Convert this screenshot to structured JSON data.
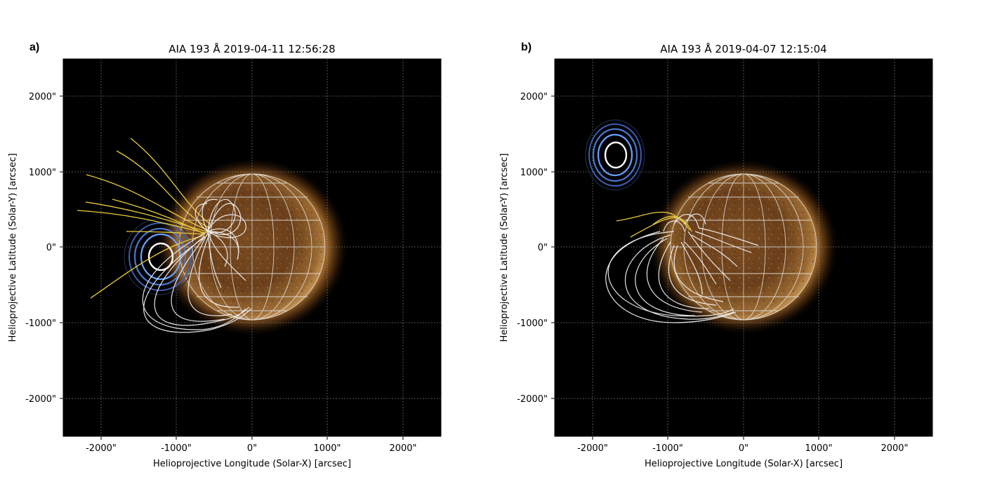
{
  "figure": {
    "colors": {
      "background_sky": "#000000",
      "sun_bright": "#f2c98a",
      "sun_mid": "#a0622a",
      "sun_dark": "#4a2a10",
      "corona": "#c48a3a",
      "grid_on_sun": "#e8e8e8",
      "open_field_lines": "#e8cc3a",
      "closed_field_lines": "#f2f2f2",
      "contour_outer": "#3b5fb0",
      "contour_inner": "#6aa0ff",
      "contour_core": "#ffffff"
    },
    "icons": [
      "solar-disk",
      "magnetic-field-lines",
      "probability-contours"
    ],
    "panels": [
      {
        "letter": "a)",
        "title": "AIA 193 Å 2019-04-11 12:56:28",
        "xlabel": "Helioprojective Longitude (Solar-X) [arcsec]",
        "ylabel": "Helioprojective Latitude (Solar-Y) [arcsec]",
        "xticks": [
          "-2000\"",
          "-1000\"",
          "0\"",
          "1000\"",
          "2000\""
        ],
        "yticks": [
          "2000\"",
          "1000\"",
          "0\"",
          "-1000\"",
          "-2000\""
        ],
        "axis_range_arcsec": {
          "x": [
            -2500,
            2500
          ],
          "y": [
            -2500,
            2500
          ]
        },
        "grid": true,
        "contour_center_arcsec": [
          -1230,
          -130
        ]
      },
      {
        "letter": "b)",
        "title": "AIA 193 Å 2019-04-07 12:15:04",
        "xlabel": "Helioprojective Longitude (Solar-X) [arcsec]",
        "ylabel": "Helioprojective Latitude (Solar-Y) [arcsec]",
        "xticks": [
          "-2000\"",
          "-1000\"",
          "0\"",
          "1000\"",
          "2000\""
        ],
        "yticks": [
          "2000\"",
          "1000\"",
          "0\"",
          "-1000\"",
          "-2000\""
        ],
        "axis_range_arcsec": {
          "x": [
            -2500,
            2500
          ],
          "y": [
            -2500,
            2500
          ]
        },
        "grid": true,
        "contour_center_arcsec": [
          -1700,
          1200
        ]
      }
    ]
  }
}
